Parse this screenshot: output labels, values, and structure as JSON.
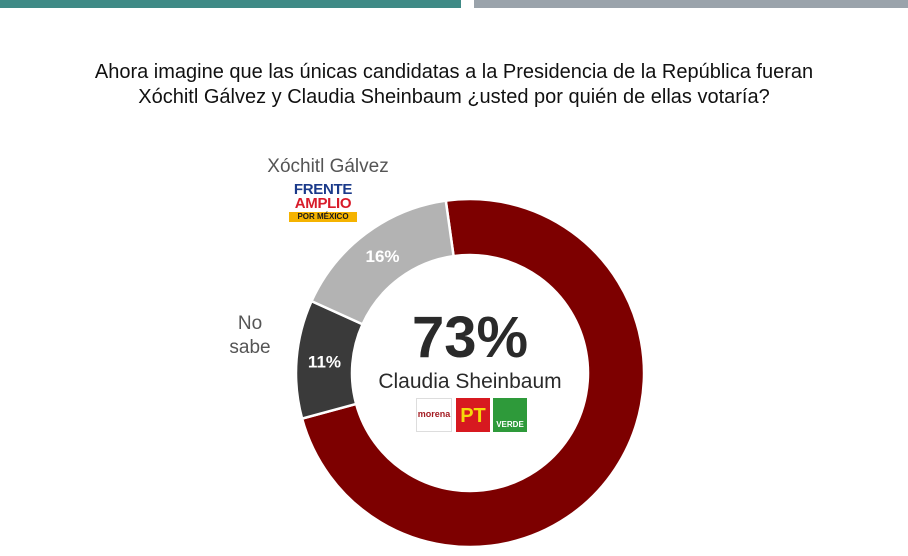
{
  "header": {
    "title_line1": "Ahora imagine que las únicas candidatas a la Presidencia de la República fueran",
    "title_line2": "Xóchitl Gálvez y Claudia Sheinbaum ¿usted por quién de ellas votaría?"
  },
  "chart_data": {
    "type": "pie",
    "title": "Ahora imagine que las únicas candidatas a la Presidencia de la República fueran Xóchitl Gálvez y Claudia Sheinbaum ¿usted por quién de ellas votaría?",
    "categories": [
      "Claudia Sheinbaum",
      "No sabe",
      "Xóchitl Gálvez"
    ],
    "values": [
      73,
      11,
      16
    ],
    "value_labels": [
      "73%",
      "11%",
      "16%"
    ],
    "colors": [
      "#7d0000",
      "#3a3a3a",
      "#b3b3b3"
    ],
    "donut": true
  },
  "labels": {
    "xochitl": "Xóchitl Gálvez",
    "no_sabe_1": "No",
    "no_sabe_2": "sabe",
    "claudia": "Claudia Sheinbaum",
    "center_pct": "73%"
  },
  "logos": {
    "frente_line1": "FRENTE",
    "frente_line2": "AMPLIO",
    "frente_line3": "POR MÉXICO",
    "morena": "morena",
    "pt": "PT",
    "verde": "VERDE"
  },
  "colors": {
    "top_bar_left": "#3f8a86",
    "top_bar_right": "#9aa3ab"
  }
}
